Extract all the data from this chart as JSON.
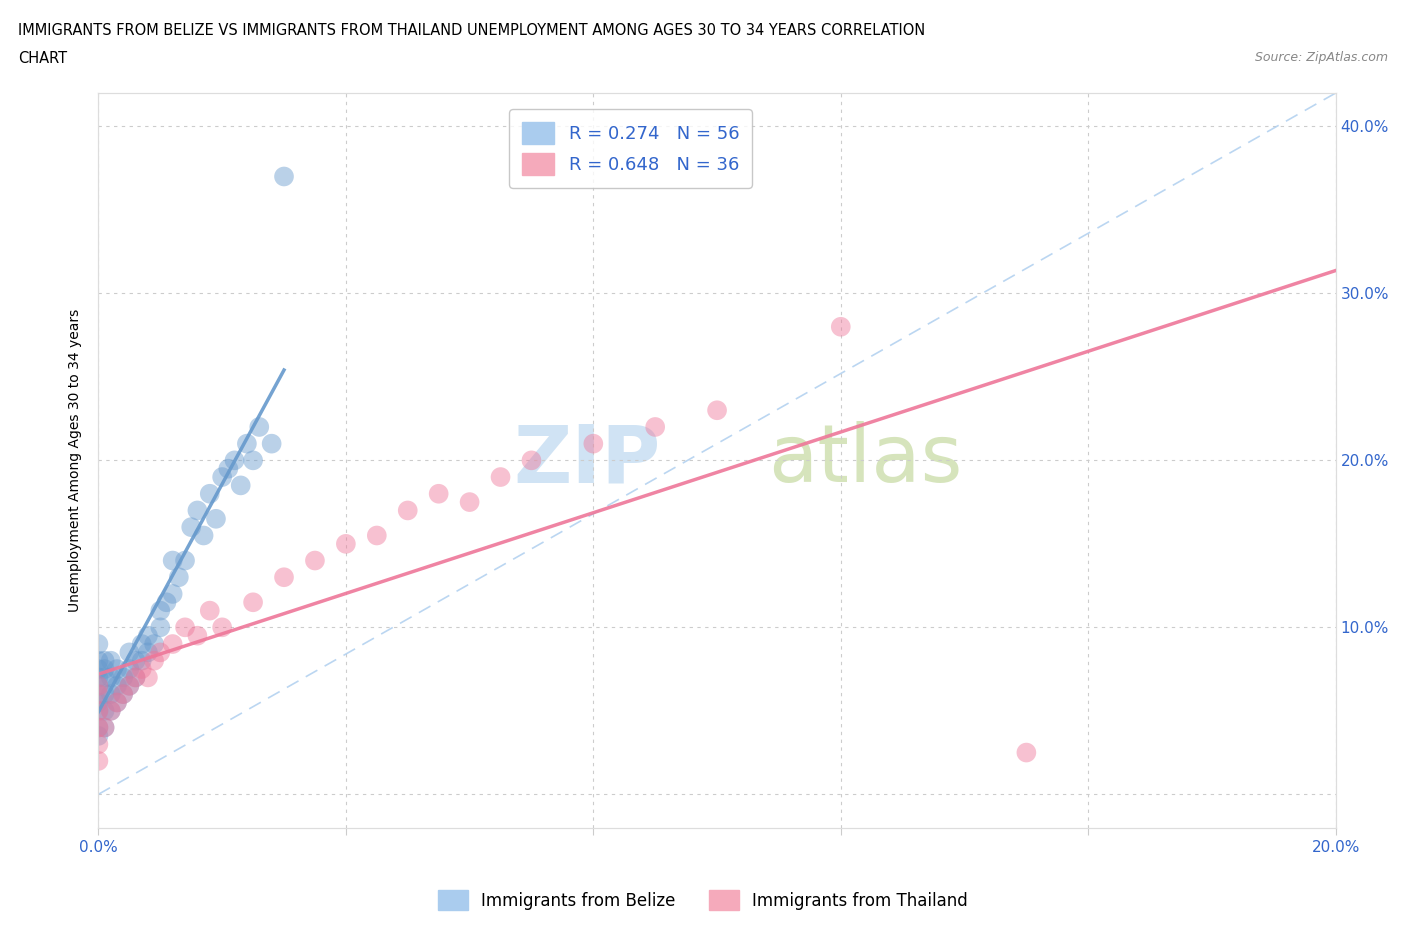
{
  "title_line1": "IMMIGRANTS FROM BELIZE VS IMMIGRANTS FROM THAILAND UNEMPLOYMENT AMONG AGES 30 TO 34 YEARS CORRELATION",
  "title_line2": "CHART",
  "source_text": "Source: ZipAtlas.com",
  "ylabel": "Unemployment Among Ages 30 to 34 years",
  "xlim": [
    0.0,
    0.2
  ],
  "ylim": [
    -0.02,
    0.42
  ],
  "belize_color": "#6699CC",
  "thailand_color": "#EE7799",
  "belize_R": 0.274,
  "belize_N": 56,
  "thailand_R": 0.648,
  "thailand_N": 36,
  "legend_label_belize": "R = 0.274   N = 56",
  "legend_label_thailand": "R = 0.648   N = 36",
  "legend_bottom_belize": "Immigrants from Belize",
  "legend_bottom_thailand": "Immigrants from Thailand",
  "belize_x": [
    0.0,
    0.0,
    0.0,
    0.0,
    0.0,
    0.0,
    0.0,
    0.0,
    0.0,
    0.0,
    0.001,
    0.001,
    0.001,
    0.001,
    0.001,
    0.001,
    0.002,
    0.002,
    0.002,
    0.002,
    0.003,
    0.003,
    0.003,
    0.004,
    0.004,
    0.005,
    0.005,
    0.005,
    0.006,
    0.006,
    0.007,
    0.007,
    0.008,
    0.008,
    0.009,
    0.01,
    0.01,
    0.011,
    0.012,
    0.012,
    0.013,
    0.014,
    0.015,
    0.016,
    0.017,
    0.018,
    0.019,
    0.02,
    0.021,
    0.022,
    0.023,
    0.024,
    0.025,
    0.026,
    0.028,
    0.03
  ],
  "belize_y": [
    0.035,
    0.04,
    0.05,
    0.055,
    0.06,
    0.065,
    0.07,
    0.075,
    0.08,
    0.09,
    0.04,
    0.05,
    0.06,
    0.07,
    0.075,
    0.08,
    0.05,
    0.06,
    0.07,
    0.08,
    0.055,
    0.065,
    0.075,
    0.06,
    0.07,
    0.065,
    0.075,
    0.085,
    0.07,
    0.08,
    0.08,
    0.09,
    0.085,
    0.095,
    0.09,
    0.1,
    0.11,
    0.115,
    0.12,
    0.14,
    0.13,
    0.14,
    0.16,
    0.17,
    0.155,
    0.18,
    0.165,
    0.19,
    0.195,
    0.2,
    0.185,
    0.21,
    0.2,
    0.22,
    0.21,
    0.37
  ],
  "thailand_x": [
    0.0,
    0.0,
    0.0,
    0.0,
    0.0,
    0.0,
    0.001,
    0.002,
    0.003,
    0.004,
    0.005,
    0.006,
    0.007,
    0.008,
    0.009,
    0.01,
    0.012,
    0.014,
    0.016,
    0.018,
    0.02,
    0.025,
    0.03,
    0.035,
    0.04,
    0.045,
    0.05,
    0.055,
    0.06,
    0.065,
    0.07,
    0.08,
    0.09,
    0.1,
    0.12,
    0.15
  ],
  "thailand_y": [
    0.02,
    0.03,
    0.04,
    0.05,
    0.06,
    0.065,
    0.04,
    0.05,
    0.055,
    0.06,
    0.065,
    0.07,
    0.075,
    0.07,
    0.08,
    0.085,
    0.09,
    0.1,
    0.095,
    0.11,
    0.1,
    0.115,
    0.13,
    0.14,
    0.15,
    0.155,
    0.17,
    0.18,
    0.175,
    0.19,
    0.2,
    0.21,
    0.22,
    0.23,
    0.28,
    0.025
  ]
}
